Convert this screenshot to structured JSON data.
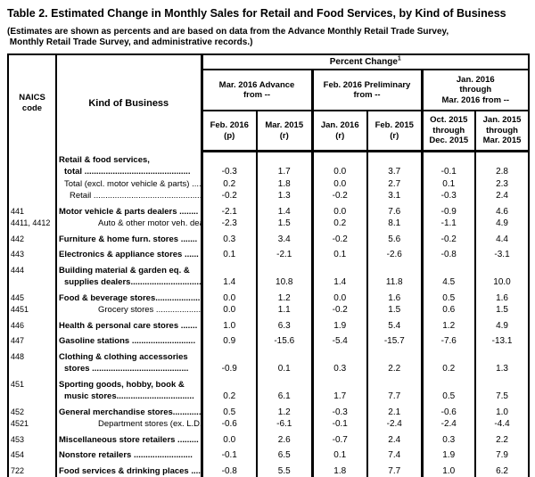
{
  "title": "Table 2.  Estimated Change in Monthly Sales for Retail and Food Services, by Kind of Business",
  "subtitle_lines": [
    "(Estimates are shown as percents and are based on data from the Advance Monthly Retail Trade Survey,",
    " Monthly Retail Trade Survey, and administrative records.)"
  ],
  "header": {
    "naics": "NAICS\ncode",
    "kind_of_business": "Kind of Business",
    "percent_change": "Percent Change",
    "percent_change_sup": "1",
    "groups": [
      "Mar. 2016 Advance\nfrom --",
      "Feb. 2016 Preliminary\nfrom --",
      "Jan. 2016\nthrough\nMar. 2016 from --"
    ],
    "subcolumns": [
      "Feb. 2016\n(p)",
      "Mar. 2015\n(r)",
      "Jan. 2016\n(r)",
      "Feb. 2015\n(r)",
      "Oct. 2015\nthrough\nDec. 2015",
      "Jan. 2015\nthrough\nMar. 2015"
    ]
  },
  "table": {
    "rows": [
      {
        "naics": "",
        "lines": [
          "Retail & food services,",
          "total ............................................."
        ],
        "indent": [
          0,
          1
        ],
        "bold": true,
        "group_start": false,
        "values": [
          "-0.3",
          "1.7",
          "0.0",
          "3.7",
          "-0.1",
          "2.8"
        ]
      },
      {
        "naics": "",
        "lines": [
          "Total (excl. motor vehicle & parts) ...."
        ],
        "indent": [
          1
        ],
        "bold": false,
        "group_start": false,
        "values": [
          "0.2",
          "1.8",
          "0.0",
          "2.7",
          "0.1",
          "2.3"
        ]
      },
      {
        "naics": "",
        "lines": [
          "Retail ................................................"
        ],
        "indent": [
          2
        ],
        "bold": false,
        "group_start": false,
        "values": [
          "-0.2",
          "1.3",
          "-0.2",
          "3.1",
          "-0.3",
          "2.4"
        ]
      },
      {
        "naics": "441",
        "lines": [
          "Motor vehicle & parts dealers ........"
        ],
        "indent": [
          0
        ],
        "bold": true,
        "group_start": true,
        "values": [
          "-2.1",
          "1.4",
          "0.0",
          "7.6",
          "-0.9",
          "4.6"
        ]
      },
      {
        "naics": "4411, 4412",
        "lines": [
          "Auto & other motor veh. dealers .."
        ],
        "indent": [
          3
        ],
        "bold": false,
        "group_start": false,
        "values": [
          "-2.3",
          "1.5",
          "0.2",
          "8.1",
          "-1.1",
          "4.9"
        ]
      },
      {
        "naics": "442",
        "lines": [
          "Furniture & home furn. stores ......."
        ],
        "indent": [
          0
        ],
        "bold": true,
        "group_start": true,
        "values": [
          "0.3",
          "3.4",
          "-0.2",
          "5.6",
          "-0.2",
          "4.4"
        ]
      },
      {
        "naics": "443",
        "lines": [
          "Electronics & appliance stores ......"
        ],
        "indent": [
          0
        ],
        "bold": true,
        "group_start": true,
        "values": [
          "0.1",
          "-2.1",
          "0.1",
          "-2.6",
          "-0.8",
          "-3.1"
        ]
      },
      {
        "naics": "444",
        "lines": [
          "Building material & garden eq. &",
          "supplies dealers.............................."
        ],
        "indent": [
          0,
          1
        ],
        "bold": true,
        "group_start": true,
        "values": [
          "1.4",
          "10.8",
          "1.4",
          "11.8",
          "4.5",
          "10.0"
        ]
      },
      {
        "naics": "445",
        "lines": [
          "Food & beverage stores..................."
        ],
        "indent": [
          0
        ],
        "bold": true,
        "group_start": true,
        "values": [
          "0.0",
          "1.2",
          "0.0",
          "1.6",
          "0.5",
          "1.6"
        ]
      },
      {
        "naics": "4451",
        "lines": [
          "Grocery stores ............................."
        ],
        "indent": [
          3
        ],
        "bold": false,
        "group_start": false,
        "values": [
          "0.0",
          "1.1",
          "-0.2",
          "1.5",
          "0.6",
          "1.5"
        ]
      },
      {
        "naics": "446",
        "lines": [
          "Health & personal care stores ......."
        ],
        "indent": [
          0
        ],
        "bold": true,
        "group_start": true,
        "values": [
          "1.0",
          "6.3",
          "1.9",
          "5.4",
          "1.2",
          "4.9"
        ]
      },
      {
        "naics": "447",
        "lines": [
          "Gasoline stations ..........................."
        ],
        "indent": [
          0
        ],
        "bold": true,
        "group_start": true,
        "values": [
          "0.9",
          "-15.6",
          "-5.4",
          "-15.7",
          "-7.6",
          "-13.1"
        ]
      },
      {
        "naics": "448",
        "lines": [
          "Clothing & clothing accessories",
          "stores ........................................."
        ],
        "indent": [
          0,
          1
        ],
        "bold": true,
        "group_start": true,
        "values": [
          "-0.9",
          "0.1",
          "0.3",
          "2.2",
          "0.2",
          "1.3"
        ]
      },
      {
        "naics": "451",
        "lines": [
          "Sporting goods, hobby, book &",
          "music stores................................."
        ],
        "indent": [
          0,
          1
        ],
        "bold": true,
        "group_start": true,
        "values": [
          "0.2",
          "6.1",
          "1.7",
          "7.7",
          "0.5",
          "7.5"
        ]
      },
      {
        "naics": "452",
        "lines": [
          "General merchandise stores............"
        ],
        "indent": [
          0
        ],
        "bold": true,
        "group_start": true,
        "values": [
          "0.5",
          "1.2",
          "-0.3",
          "2.1",
          "-0.6",
          "1.0"
        ]
      },
      {
        "naics": "4521",
        "lines": [
          "Department stores (ex. L.D.)........."
        ],
        "indent": [
          3
        ],
        "bold": false,
        "group_start": false,
        "values": [
          "-0.6",
          "-6.1",
          "-0.1",
          "-2.4",
          "-2.4",
          "-4.4"
        ]
      },
      {
        "naics": "453",
        "lines": [
          "Miscellaneous store retailers ........."
        ],
        "indent": [
          0
        ],
        "bold": true,
        "group_start": true,
        "values": [
          "0.0",
          "2.6",
          "-0.7",
          "2.4",
          "0.3",
          "2.2"
        ]
      },
      {
        "naics": "454",
        "lines": [
          "Nonstore retailers ........................."
        ],
        "indent": [
          0
        ],
        "bold": true,
        "group_start": true,
        "values": [
          "-0.1",
          "6.5",
          "0.1",
          "7.4",
          "1.9",
          "7.9"
        ]
      },
      {
        "naics": "722",
        "lines": [
          "Food services & drinking places ...."
        ],
        "indent": [
          0
        ],
        "bold": true,
        "group_start": true,
        "values": [
          "-0.8",
          "5.5",
          "1.8",
          "7.7",
          "1.0",
          "6.2"
        ]
      }
    ]
  }
}
